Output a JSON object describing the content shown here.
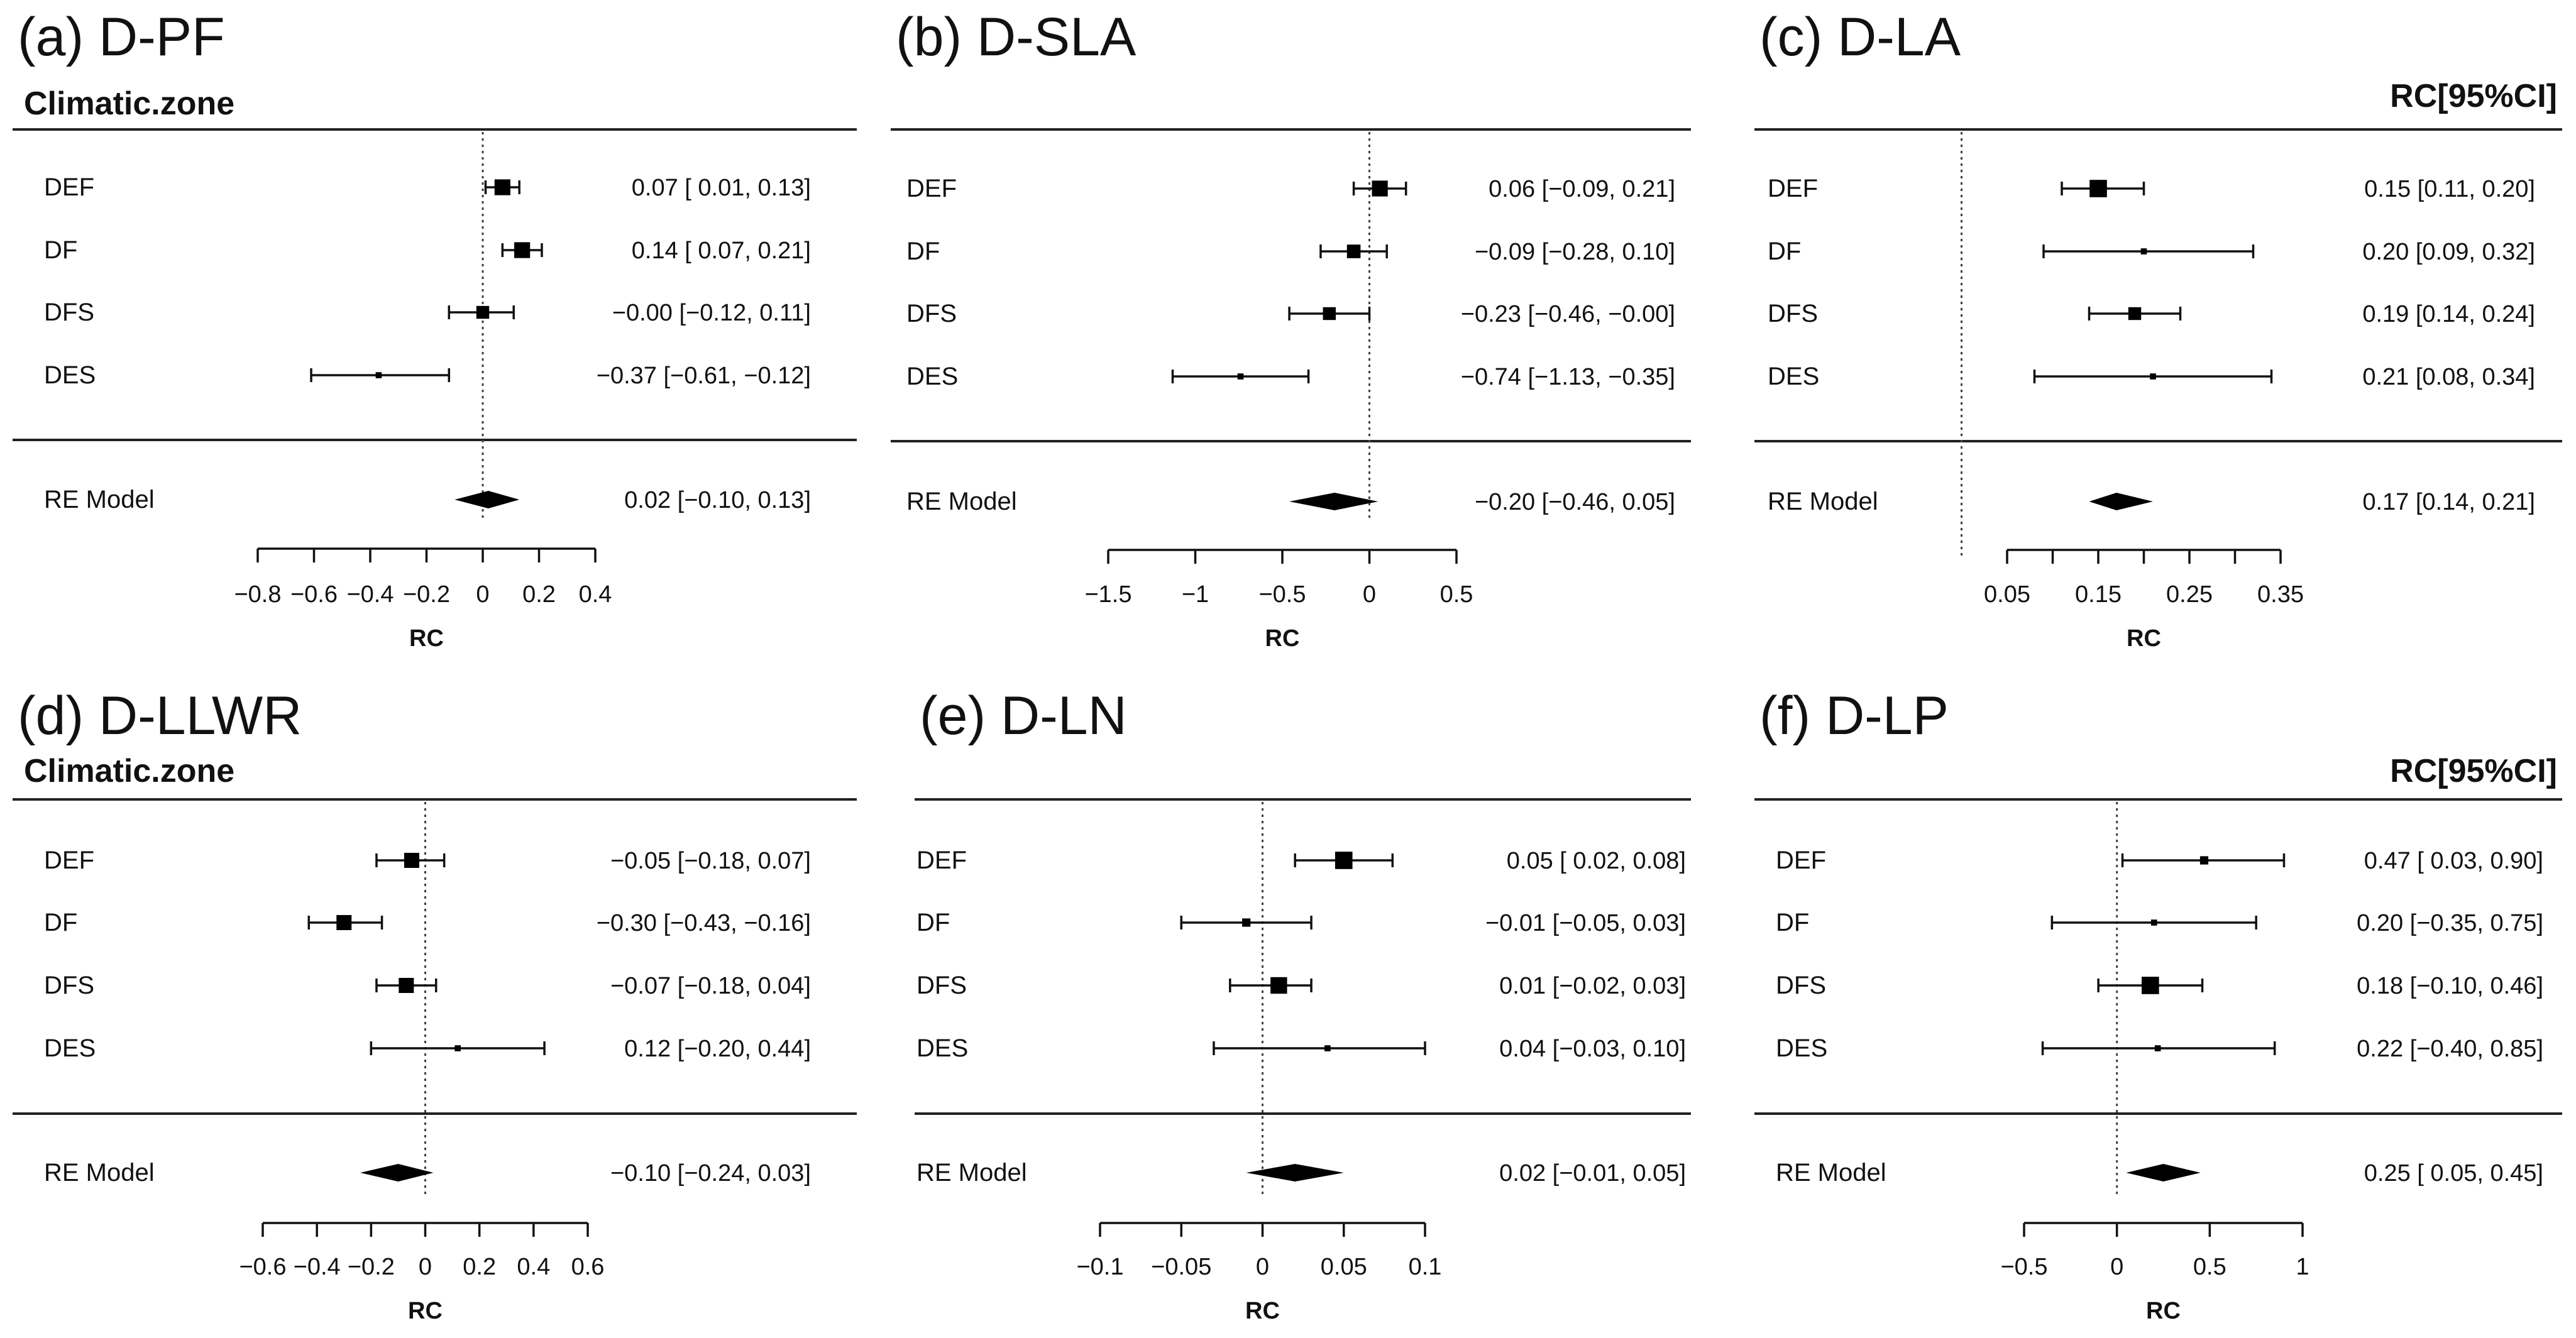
{
  "chart_data": [
    {
      "type": "forest",
      "panel_label": "(a) D-PF",
      "header_left": "Climatic.zone",
      "header_right": "",
      "xlabel": "RC",
      "xlim": [
        -0.8,
        0.4
      ],
      "ticks": [
        -0.8,
        -0.6,
        -0.4,
        -0.2,
        0,
        0.2,
        0.4
      ],
      "tick_labels": [
        "−0.8",
        "−0.6",
        "−0.4",
        "−0.2",
        "0",
        "0.2",
        "0.4"
      ],
      "reference_line": 0,
      "studies": [
        {
          "label": "DEF",
          "est": 0.07,
          "lo": 0.01,
          "hi": 0.13,
          "text": "0.07 [ 0.01,  0.13]",
          "weight": 0.8
        },
        {
          "label": "DF",
          "est": 0.14,
          "lo": 0.07,
          "hi": 0.21,
          "text": "0.14 [ 0.07,  0.21]",
          "weight": 0.8
        },
        {
          "label": "DFS",
          "est": -0.0,
          "lo": -0.12,
          "hi": 0.11,
          "text": "−0.00 [−0.12,  0.11]",
          "weight": 0.6
        },
        {
          "label": "DES",
          "est": -0.37,
          "lo": -0.61,
          "hi": -0.12,
          "text": "−0.37 [−0.61, −0.12]",
          "weight": 0.15
        }
      ],
      "summary": {
        "label": "RE Model",
        "est": 0.02,
        "lo": -0.1,
        "hi": 0.13,
        "text": "0.02 [−0.10,  0.13]"
      }
    },
    {
      "type": "forest",
      "panel_label": "(b) D-SLA",
      "header_left": "",
      "header_right": "",
      "xlabel": "RC",
      "xlim": [
        -1.5,
        0.5
      ],
      "ticks": [
        -1.5,
        -1,
        -0.5,
        0,
        0.5
      ],
      "tick_labels": [
        "−1.5",
        "−1",
        "−0.5",
        "0",
        "0.5"
      ],
      "reference_line": 0,
      "studies": [
        {
          "label": "DEF",
          "est": 0.06,
          "lo": -0.09,
          "hi": 0.21,
          "text": "0.06 [−0.09,  0.21]",
          "weight": 0.8
        },
        {
          "label": "DF",
          "est": -0.09,
          "lo": -0.28,
          "hi": 0.1,
          "text": "−0.09 [−0.28,  0.10]",
          "weight": 0.65
        },
        {
          "label": "DFS",
          "est": -0.23,
          "lo": -0.46,
          "hi": -0.0,
          "text": "−0.23 [−0.46, −0.00]",
          "weight": 0.6
        },
        {
          "label": "DES",
          "est": -0.74,
          "lo": -1.13,
          "hi": -0.35,
          "text": "−0.74 [−1.13, −0.35]",
          "weight": 0.15
        }
      ],
      "summary": {
        "label": "RE Model",
        "est": -0.2,
        "lo": -0.46,
        "hi": 0.05,
        "text": "−0.20 [−0.46,  0.05]"
      }
    },
    {
      "type": "forest",
      "panel_label": "(c) D-LA",
      "header_left": "",
      "header_right": "RC[95%CI]",
      "xlabel": "RC",
      "xlim": [
        0.05,
        0.35
      ],
      "ticks": [
        0.05,
        0.15,
        0.25,
        0.35
      ],
      "minor_ticks": [
        0.05,
        0.1,
        0.15,
        0.2,
        0.25,
        0.3,
        0.35
      ],
      "tick_labels": [
        "0.05",
        "0.15",
        "0.25",
        "0.35"
      ],
      "reference_line": 0,
      "studies": [
        {
          "label": "DEF",
          "est": 0.15,
          "lo": 0.11,
          "hi": 0.2,
          "text": "0.15 [0.11, 0.20]",
          "weight": 0.9
        },
        {
          "label": "DF",
          "est": 0.2,
          "lo": 0.09,
          "hi": 0.32,
          "text": "0.20 [0.09, 0.32]",
          "weight": 0.15
        },
        {
          "label": "DFS",
          "est": 0.19,
          "lo": 0.14,
          "hi": 0.24,
          "text": "0.19 [0.14, 0.24]",
          "weight": 0.6
        },
        {
          "label": "DES",
          "est": 0.21,
          "lo": 0.08,
          "hi": 0.34,
          "text": "0.21 [0.08, 0.34]",
          "weight": 0.15
        }
      ],
      "summary": {
        "label": "RE Model",
        "est": 0.17,
        "lo": 0.14,
        "hi": 0.21,
        "text": "0.17 [0.14, 0.21]"
      }
    },
    {
      "type": "forest",
      "panel_label": "(d) D-LLWR",
      "header_left": "Climatic.zone",
      "header_right": "",
      "xlabel": "RC",
      "xlim": [
        -0.6,
        0.6
      ],
      "ticks": [
        -0.6,
        -0.4,
        -0.2,
        0,
        0.2,
        0.4,
        0.6
      ],
      "tick_labels": [
        "−0.6",
        "−0.4",
        "−0.2",
        "0",
        "0.2",
        "0.4",
        "0.6"
      ],
      "reference_line": 0,
      "studies": [
        {
          "label": "DEF",
          "est": -0.05,
          "lo": -0.18,
          "hi": 0.07,
          "text": "−0.05 [−0.18,  0.07]",
          "weight": 0.75
        },
        {
          "label": "DF",
          "est": -0.3,
          "lo": -0.43,
          "hi": -0.16,
          "text": "−0.30 [−0.43, −0.16]",
          "weight": 0.75
        },
        {
          "label": "DFS",
          "est": -0.07,
          "lo": -0.18,
          "hi": 0.04,
          "text": "−0.07 [−0.18,  0.04]",
          "weight": 0.75
        },
        {
          "label": "DES",
          "est": 0.12,
          "lo": -0.2,
          "hi": 0.44,
          "text": "0.12 [−0.20,  0.44]",
          "weight": 0.15
        }
      ],
      "summary": {
        "label": "RE Model",
        "est": -0.1,
        "lo": -0.24,
        "hi": 0.03,
        "text": "−0.10 [−0.24,  0.03]"
      }
    },
    {
      "type": "forest",
      "panel_label": "(e) D-LN",
      "header_left": "",
      "header_right": "",
      "xlabel": "RC",
      "xlim": [
        -0.1,
        0.1
      ],
      "ticks": [
        -0.1,
        -0.05,
        0,
        0.05,
        0.1
      ],
      "tick_labels": [
        "−0.1",
        "−0.05",
        "0",
        "0.05",
        "0.1"
      ],
      "reference_line": 0,
      "studies": [
        {
          "label": "DEF",
          "est": 0.05,
          "lo": 0.02,
          "hi": 0.08,
          "text": "0.05 [ 0.02, 0.08]",
          "weight": 0.9
        },
        {
          "label": "DF",
          "est": -0.01,
          "lo": -0.05,
          "hi": 0.03,
          "text": "−0.01 [−0.05, 0.03]",
          "weight": 0.3
        },
        {
          "label": "DFS",
          "est": 0.01,
          "lo": -0.02,
          "hi": 0.03,
          "text": "0.01 [−0.02, 0.03]",
          "weight": 0.85
        },
        {
          "label": "DES",
          "est": 0.04,
          "lo": -0.03,
          "hi": 0.1,
          "text": "0.04 [−0.03, 0.10]",
          "weight": 0.15
        }
      ],
      "summary": {
        "label": "RE Model",
        "est": 0.02,
        "lo": -0.01,
        "hi": 0.05,
        "text": "0.02 [−0.01, 0.05]"
      }
    },
    {
      "type": "forest",
      "panel_label": "(f) D-LP",
      "header_left": "",
      "header_right": "RC[95%CI]",
      "xlabel": "RC",
      "xlim": [
        -0.5,
        1
      ],
      "ticks": [
        -0.5,
        0,
        0.5,
        1
      ],
      "tick_labels": [
        "−0.5",
        "0",
        "0.5",
        "1"
      ],
      "reference_line": 0,
      "studies": [
        {
          "label": "DEF",
          "est": 0.47,
          "lo": 0.03,
          "hi": 0.9,
          "text": "0.47 [ 0.03, 0.90]",
          "weight": 0.3
        },
        {
          "label": "DF",
          "est": 0.2,
          "lo": -0.35,
          "hi": 0.75,
          "text": "0.20 [−0.35, 0.75]",
          "weight": 0.15
        },
        {
          "label": "DFS",
          "est": 0.18,
          "lo": -0.1,
          "hi": 0.46,
          "text": "0.18 [−0.10, 0.46]",
          "weight": 0.9
        },
        {
          "label": "DES",
          "est": 0.22,
          "lo": -0.4,
          "hi": 0.85,
          "text": "0.22 [−0.40, 0.85]",
          "weight": 0.15
        }
      ],
      "summary": {
        "label": "RE Model",
        "est": 0.25,
        "lo": 0.05,
        "hi": 0.45,
        "text": "0.25 [ 0.05, 0.45]"
      }
    }
  ]
}
